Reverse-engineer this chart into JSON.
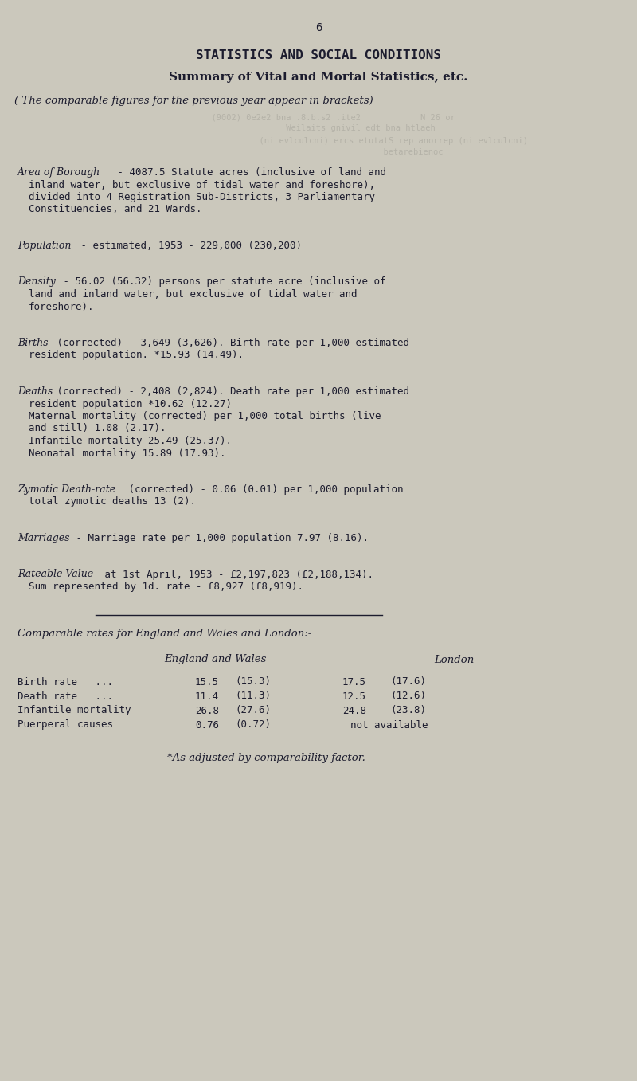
{
  "bg_color": "#cbc8bc",
  "text_color": "#1c1c2e",
  "faded_color": "#9a9890",
  "page_number": "6",
  "title1": "STATISTICS AND SOCIAL CONDITIONS",
  "title2": "Summary of Vital and Mortal Statistics, etc.",
  "italic_header": "( The comparable figures for the previous year appear in brackets)",
  "faded_lines": [
    "          (9002) 0e2e2 bna .8.b.s2 .ite2          M 26 or",
    "                  Weilaits gnivil edt bna htlaeh",
    "                                                           (n) betarebienoc",
    "                                         (ni evlculcni) ercs etutatS rep anorrep"
  ],
  "paragraphs": [
    {
      "label": "Area of Borough",
      "label_style": "bolditalic",
      "lines": [
        " - 4087.5 Statute acres (inclusive of land and",
        "  inland water, but exclusive of tidal water and foreshore),",
        "  divided into 4 Registration Sub-Districts, 3 Parliamentary",
        "  Constituencies, and 21 Wards."
      ]
    },
    {
      "label": "Population",
      "label_style": "italic",
      "lines": [
        " - estimated, 1953 - 229,000 (230,200)"
      ]
    },
    {
      "label": "Density",
      "label_style": "italic",
      "lines": [
        " - 56.02 (56.32) persons per statute acre (inclusive of",
        "  land and inland water, but exclusive of tidal water and",
        "  foreshore)."
      ]
    },
    {
      "label": "Births",
      "label_style": "italic",
      "lines": [
        " (corrected) - 3,649 (3,626). Birth rate per 1,000 estimated",
        "  resident population. *15.93 (14.49)."
      ]
    },
    {
      "label": "Deaths",
      "label_style": "italic",
      "lines": [
        " (corrected) - 2,408 (2,824). Death rate per 1,000 estimated",
        "  resident population *10.62 (12.27)",
        "  Maternal mortality (corrected) per 1,000 total births (live",
        "  and still) 1.08 (2.17).",
        "  Infantile mortality 25.49 (25.37).",
        "  Neonatal mortality 15.89 (17.93)."
      ]
    },
    {
      "label": "Zymotic Death-rate",
      "label_style": "bolditalic",
      "lines": [
        " (corrected) - 0.06 (0.01) per 1,000 population",
        "  total zymotic deaths 13 (2)."
      ]
    },
    {
      "label": "Marriages",
      "label_style": "italic",
      "lines": [
        " - Marriage rate per 1,000 population 7.97 (8.16)."
      ]
    },
    {
      "label": "Rateable Value",
      "label_style": "bolditalic",
      "lines": [
        " at 1st April, 1953 - £2,197,823 (£2,188,134).",
        "  Sum represented by 1d. rate - £8,927 (£8,919)."
      ]
    }
  ],
  "comparable_header": "Comparable rates for England and Wales and London:-",
  "table_col1_header": "England and Wales",
  "table_col2_header": "London",
  "table_rows": [
    {
      "label": "Birth rate   ...",
      "ew_val": "15.5",
      "ew_prev": "(15.3)",
      "lon_val": "17.5",
      "lon_prev": "(17.6)"
    },
    {
      "label": "Death rate   ...",
      "ew_val": "11.4",
      "ew_prev": "(11.3)",
      "lon_val": "12.5",
      "lon_prev": "(12.6)"
    },
    {
      "label": "Infantile mortality",
      "ew_val": "26.8",
      "ew_prev": "(27.6)",
      "lon_val": "24.8",
      "lon_prev": "(23.8)"
    },
    {
      "label": "Puerperal causes",
      "ew_val": "0.76",
      "ew_prev": "(0.72)",
      "lon_val": "not available",
      "lon_prev": ""
    }
  ],
  "footnote": "*As adjusted by comparability factor.",
  "label_widths": {
    "Area of Borough": 0.148,
    "Population": 0.09,
    "Density": 0.062,
    "Births": 0.052,
    "Deaths": 0.053,
    "Zymotic Death-rate": 0.165,
    "Marriages": 0.082,
    "Rateable Value": 0.128
  }
}
